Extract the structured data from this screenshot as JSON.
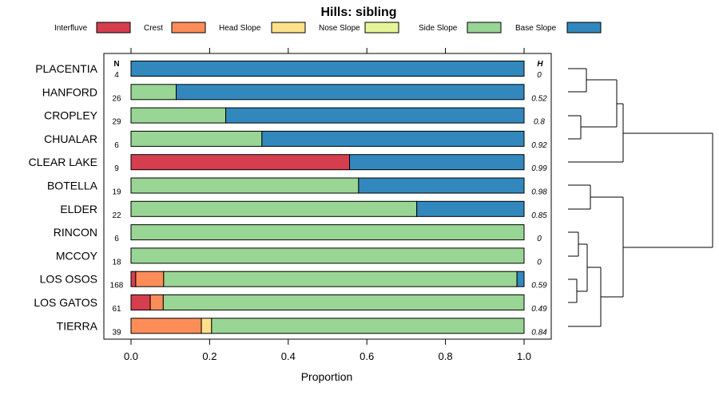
{
  "chart_data": {
    "type": "bar",
    "orientation": "horizontal",
    "stacked": true,
    "title": "Hills: sibling",
    "xlabel": "Proportion",
    "xlim": [
      0,
      1
    ],
    "xticks": [
      "0.0",
      "0.2",
      "0.4",
      "0.6",
      "0.8",
      "1.0"
    ],
    "n_header": "N",
    "h_header": "H",
    "legend": [
      {
        "name": "Interfluve",
        "color": "#D53E4F"
      },
      {
        "name": "Crest",
        "color": "#FC8D59"
      },
      {
        "name": "Head Slope",
        "color": "#FEE08B"
      },
      {
        "name": "Nose Slope",
        "color": "#E6F598"
      },
      {
        "name": "Side Slope",
        "color": "#99D594"
      },
      {
        "name": "Base Slope",
        "color": "#3288BD"
      }
    ],
    "categories": [
      "PLACENTIA",
      "HANFORD",
      "CROPLEY",
      "CHUALAR",
      "CLEAR LAKE",
      "BOTELLA",
      "ELDER",
      "RINCON",
      "MCCOY",
      "LOS OSOS",
      "LOS GATOS",
      "TIERRA"
    ],
    "n": [
      "4",
      "26",
      "29",
      "6",
      "9",
      "19",
      "22",
      "6",
      "18",
      "168",
      "61",
      "39"
    ],
    "h": [
      "0",
      "0.52",
      "0.8",
      "0.92",
      "0.99",
      "0.98",
      "0.85",
      "0",
      "0",
      "0.59",
      "0.49",
      "0.84"
    ],
    "series": [
      {
        "name": "Interfluve",
        "values": [
          0,
          0,
          0,
          0,
          0.556,
          0,
          0,
          0,
          0,
          0.012,
          0.049,
          0
        ]
      },
      {
        "name": "Crest",
        "values": [
          0,
          0,
          0,
          0,
          0,
          0,
          0,
          0,
          0,
          0.071,
          0.033,
          0.179
        ]
      },
      {
        "name": "Head Slope",
        "values": [
          0,
          0,
          0,
          0,
          0,
          0,
          0,
          0,
          0,
          0,
          0,
          0.026
        ]
      },
      {
        "name": "Nose Slope",
        "values": [
          0,
          0,
          0,
          0,
          0,
          0,
          0,
          0,
          0,
          0,
          0,
          0
        ]
      },
      {
        "name": "Side Slope",
        "values": [
          0,
          0.115,
          0.241,
          0.333,
          0,
          0.579,
          0.727,
          1.0,
          1.0,
          0.899,
          0.918,
          0.795
        ]
      },
      {
        "name": "Base Slope",
        "values": [
          1.0,
          0.885,
          0.759,
          0.667,
          0.444,
          0.421,
          0.273,
          0,
          0,
          0.018,
          0,
          0
        ]
      }
    ],
    "dendrogram": "hierarchical clustering of the soil series shown at right of bars"
  }
}
